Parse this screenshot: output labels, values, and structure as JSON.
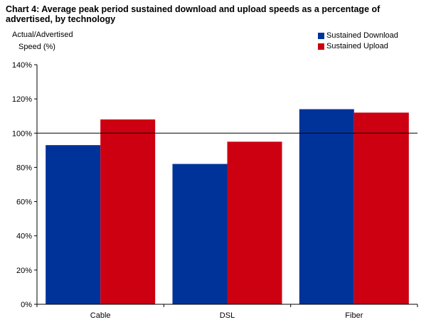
{
  "chart_data": {
    "type": "bar",
    "title": "Chart 4: Average peak period sustained download and upload speeds as a percentage of advertised, by technology",
    "ylabel_lines": [
      "Actual/Advertised",
      "Speed (%)"
    ],
    "xlabel": "",
    "categories": [
      "Cable",
      "DSL",
      "Fiber"
    ],
    "series": [
      {
        "name": "Sustained Download",
        "color": "#003399",
        "values": [
          93,
          82,
          114
        ]
      },
      {
        "name": "Sustained Upload",
        "color": "#cc0011",
        "values": [
          108,
          95,
          112
        ]
      }
    ],
    "ylim": [
      0,
      140
    ],
    "yticks": [
      0,
      20,
      40,
      60,
      80,
      100,
      120,
      140
    ],
    "ytick_labels": [
      "0%",
      "20%",
      "40%",
      "60%",
      "80%",
      "100%",
      "120%",
      "140%"
    ],
    "reference_line": 100,
    "grid": false,
    "legend_position": "top-right"
  }
}
